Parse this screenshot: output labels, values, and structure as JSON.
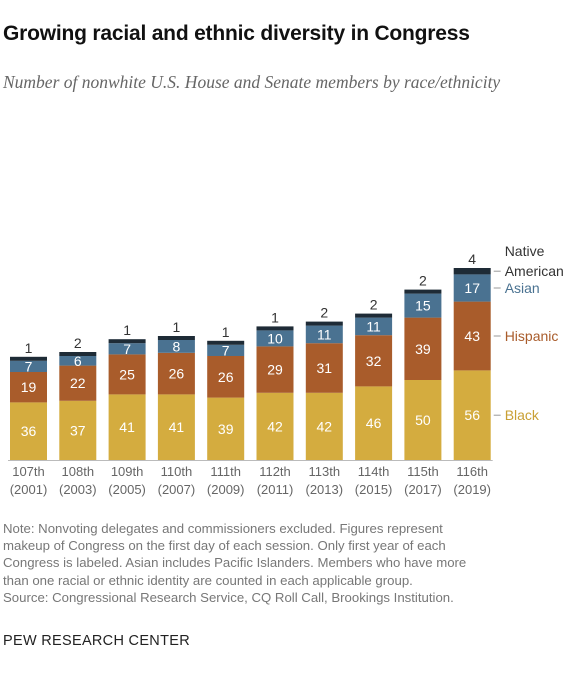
{
  "header": {
    "title": "Growing racial and ethnic diversity in Congress",
    "subtitle": "Number of nonwhite U.S. House and Senate members by race/ethnicity"
  },
  "footer": {
    "note_lines": [
      "Note: Nonvoting delegates and commissioners excluded. Figures represent",
      "makeup of Congress on the first day of each session. Only first year of each",
      "Congress is labeled. Asian includes Pacific Islanders. Members who have more",
      "than one racial or ethnic identity are counted in each applicable group.",
      "Source: Congressional Research Service, CQ Roll Call, Brookings Institution."
    ],
    "brand": "PEW RESEARCH CENTER"
  },
  "chart_data": {
    "type": "bar",
    "stacked": true,
    "categories": [
      "107th",
      "108th",
      "109th",
      "110th",
      "111th",
      "112th",
      "113th",
      "114th",
      "115th",
      "116th"
    ],
    "category_years": [
      "(2001)",
      "(2003)",
      "(2005)",
      "(2007)",
      "(2009)",
      "(2011)",
      "(2013)",
      "(2015)",
      "(2017)",
      "(2019)"
    ],
    "series": [
      {
        "name": "Black",
        "color": "#d4ac3f",
        "label_color": "#ffffff",
        "values": [
          36,
          37,
          41,
          41,
          39,
          42,
          42,
          46,
          50,
          56
        ]
      },
      {
        "name": "Hispanic",
        "color": "#a95c2b",
        "label_color": "#ffffff",
        "values": [
          19,
          22,
          25,
          26,
          26,
          29,
          31,
          32,
          39,
          43
        ]
      },
      {
        "name": "Asian",
        "color": "#4a7291",
        "label_color": "#ffffff",
        "values": [
          7,
          6,
          7,
          8,
          7,
          10,
          11,
          11,
          15,
          17
        ]
      },
      {
        "name": "Native American",
        "color": "#1e2b36",
        "label_color": "#333333",
        "values": [
          1,
          2,
          1,
          1,
          1,
          1,
          2,
          2,
          2,
          4
        ]
      }
    ],
    "legend_placement": "right",
    "legend_colors": {
      "Black": "#c9a034",
      "Hispanic": "#a95c2b",
      "Asian": "#4a7291",
      "Native American": "#333333"
    },
    "grid": false
  }
}
